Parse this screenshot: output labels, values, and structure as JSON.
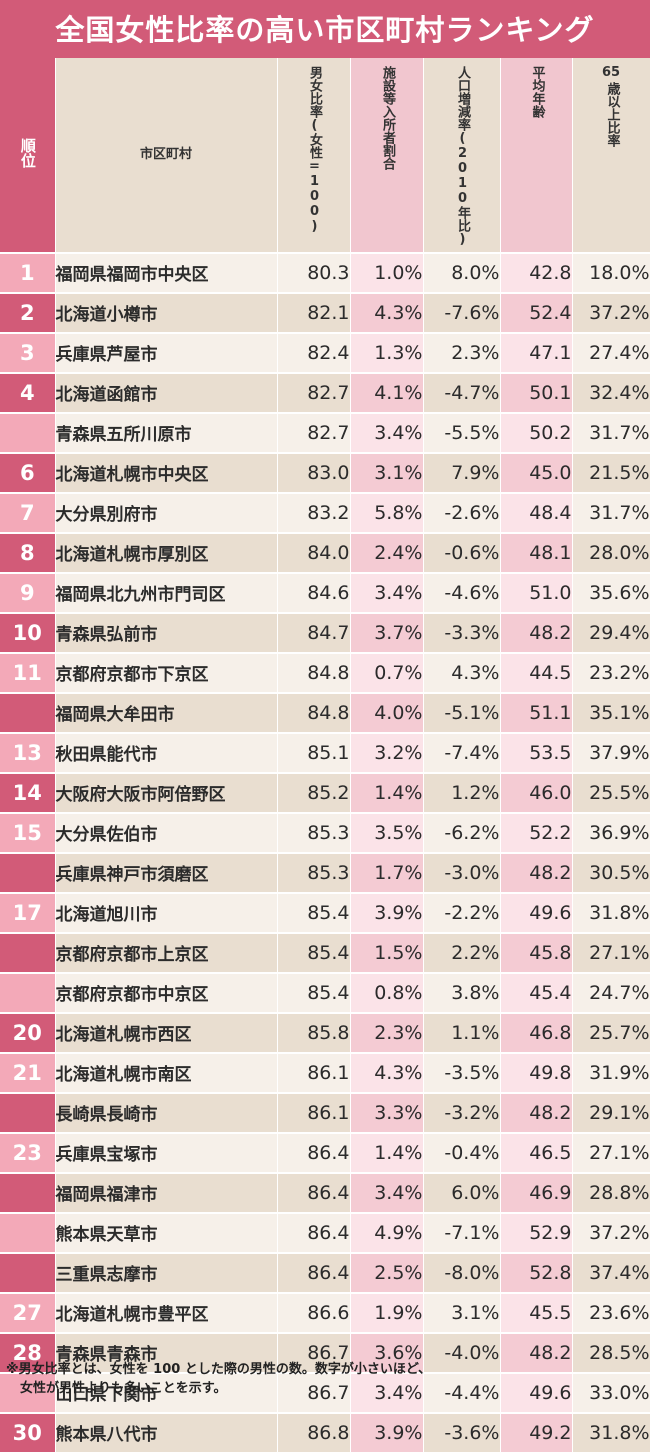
{
  "title": "全国女性比率の高い市区町村ランキング",
  "headers": {
    "rank": "順位",
    "city": "市区町村",
    "col1": "男女比率(女性=100)",
    "col2": "施設等入所者割合",
    "col3": "人口増減率(2010年比)",
    "col4": "平均年齢",
    "col5_num": "65",
    "col5_text": "歳以上比率"
  },
  "rows": [
    {
      "rank": "1",
      "city": "福岡県福岡市中央区",
      "ratio": "80.3",
      "facility": "1.0%",
      "change": "8.0%",
      "age": "42.8",
      "over65": "18.0%"
    },
    {
      "rank": "2",
      "city": "北海道小樽市",
      "ratio": "82.1",
      "facility": "4.3%",
      "change": "-7.6%",
      "age": "52.4",
      "over65": "37.2%"
    },
    {
      "rank": "3",
      "city": "兵庫県芦屋市",
      "ratio": "82.4",
      "facility": "1.3%",
      "change": "2.3%",
      "age": "47.1",
      "over65": "27.4%"
    },
    {
      "rank": "4",
      "city": "北海道函館市",
      "ratio": "82.7",
      "facility": "4.1%",
      "change": "-4.7%",
      "age": "50.1",
      "over65": "32.4%"
    },
    {
      "rank": "",
      "city": "青森県五所川原市",
      "ratio": "82.7",
      "facility": "3.4%",
      "change": "-5.5%",
      "age": "50.2",
      "over65": "31.7%"
    },
    {
      "rank": "6",
      "city": "北海道札幌市中央区",
      "ratio": "83.0",
      "facility": "3.1%",
      "change": "7.9%",
      "age": "45.0",
      "over65": "21.5%"
    },
    {
      "rank": "7",
      "city": "大分県別府市",
      "ratio": "83.2",
      "facility": "5.8%",
      "change": "-2.6%",
      "age": "48.4",
      "over65": "31.7%"
    },
    {
      "rank": "8",
      "city": "北海道札幌市厚別区",
      "ratio": "84.0",
      "facility": "2.4%",
      "change": "-0.6%",
      "age": "48.1",
      "over65": "28.0%"
    },
    {
      "rank": "9",
      "city": "福岡県北九州市門司区",
      "ratio": "84.6",
      "facility": "3.4%",
      "change": "-4.6%",
      "age": "51.0",
      "over65": "35.6%"
    },
    {
      "rank": "10",
      "city": "青森県弘前市",
      "ratio": "84.7",
      "facility": "3.7%",
      "change": "-3.3%",
      "age": "48.2",
      "over65": "29.4%"
    },
    {
      "rank": "11",
      "city": "京都府京都市下京区",
      "ratio": "84.8",
      "facility": "0.7%",
      "change": "4.3%",
      "age": "44.5",
      "over65": "23.2%"
    },
    {
      "rank": "",
      "city": "福岡県大牟田市",
      "ratio": "84.8",
      "facility": "4.0%",
      "change": "-5.1%",
      "age": "51.1",
      "over65": "35.1%"
    },
    {
      "rank": "13",
      "city": "秋田県能代市",
      "ratio": "85.1",
      "facility": "3.2%",
      "change": "-7.4%",
      "age": "53.5",
      "over65": "37.9%"
    },
    {
      "rank": "14",
      "city": "大阪府大阪市阿倍野区",
      "ratio": "85.2",
      "facility": "1.4%",
      "change": "1.2%",
      "age": "46.0",
      "over65": "25.5%"
    },
    {
      "rank": "15",
      "city": "大分県佐伯市",
      "ratio": "85.3",
      "facility": "3.5%",
      "change": "-6.2%",
      "age": "52.2",
      "over65": "36.9%"
    },
    {
      "rank": "",
      "city": "兵庫県神戸市須磨区",
      "ratio": "85.3",
      "facility": "1.7%",
      "change": "-3.0%",
      "age": "48.2",
      "over65": "30.5%"
    },
    {
      "rank": "17",
      "city": "北海道旭川市",
      "ratio": "85.4",
      "facility": "3.9%",
      "change": "-2.2%",
      "age": "49.6",
      "over65": "31.8%"
    },
    {
      "rank": "",
      "city": "京都府京都市上京区",
      "ratio": "85.4",
      "facility": "1.5%",
      "change": "2.2%",
      "age": "45.8",
      "over65": "27.1%"
    },
    {
      "rank": "",
      "city": "京都府京都市中京区",
      "ratio": "85.4",
      "facility": "0.8%",
      "change": "3.8%",
      "age": "45.4",
      "over65": "24.7%"
    },
    {
      "rank": "20",
      "city": "北海道札幌市西区",
      "ratio": "85.8",
      "facility": "2.3%",
      "change": "1.1%",
      "age": "46.8",
      "over65": "25.7%"
    },
    {
      "rank": "21",
      "city": "北海道札幌市南区",
      "ratio": "86.1",
      "facility": "4.3%",
      "change": "-3.5%",
      "age": "49.8",
      "over65": "31.9%"
    },
    {
      "rank": "",
      "city": "長崎県長崎市",
      "ratio": "86.1",
      "facility": "3.3%",
      "change": "-3.2%",
      "age": "48.2",
      "over65": "29.1%"
    },
    {
      "rank": "23",
      "city": "兵庫県宝塚市",
      "ratio": "86.4",
      "facility": "1.4%",
      "change": "-0.4%",
      "age": "46.5",
      "over65": "27.1%"
    },
    {
      "rank": "",
      "city": "福岡県福津市",
      "ratio": "86.4",
      "facility": "3.4%",
      "change": "6.0%",
      "age": "46.9",
      "over65": "28.8%"
    },
    {
      "rank": "",
      "city": "熊本県天草市",
      "ratio": "86.4",
      "facility": "4.9%",
      "change": "-7.1%",
      "age": "52.9",
      "over65": "37.2%"
    },
    {
      "rank": "",
      "city": "三重県志摩市",
      "ratio": "86.4",
      "facility": "2.5%",
      "change": "-8.0%",
      "age": "52.8",
      "over65": "37.4%"
    },
    {
      "rank": "27",
      "city": "北海道札幌市豊平区",
      "ratio": "86.6",
      "facility": "1.9%",
      "change": "3.1%",
      "age": "45.5",
      "over65": "23.6%"
    },
    {
      "rank": "28",
      "city": "青森県青森市",
      "ratio": "86.7",
      "facility": "3.6%",
      "change": "-4.0%",
      "age": "48.2",
      "over65": "28.5%"
    },
    {
      "rank": "",
      "city": "山口県下関市",
      "ratio": "86.7",
      "facility": "3.4%",
      "change": "-4.4%",
      "age": "49.6",
      "over65": "33.0%"
    },
    {
      "rank": "30",
      "city": "熊本県八代市",
      "ratio": "86.8",
      "facility": "3.9%",
      "change": "-3.6%",
      "age": "49.2",
      "over65": "31.8%"
    }
  ],
  "footnote": {
    "line1": "※男女比率とは、女性を 100 とした際の男性の数。数字が小さいほど、",
    "line2": "女性が男性よりも多いことを示す。"
  },
  "colors": {
    "accent": "#d25b78",
    "accent_light": "#f3a9b8",
    "beige": "#e9ded0",
    "pink": "#f1c6cf"
  }
}
